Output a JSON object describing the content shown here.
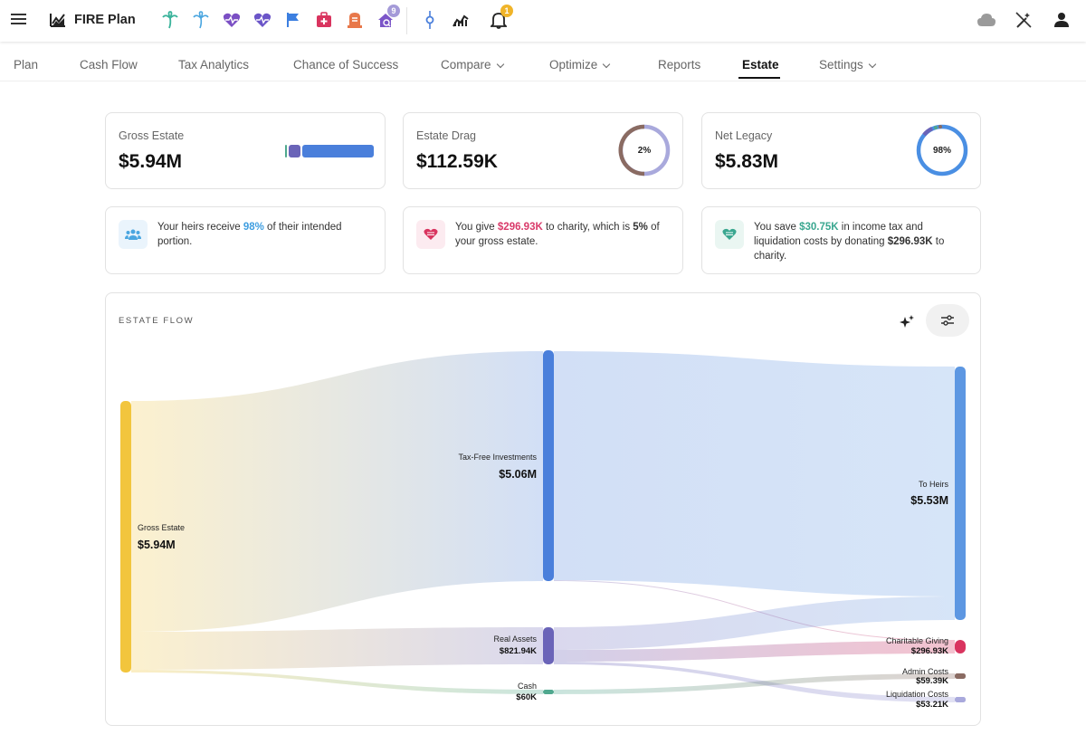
{
  "app": {
    "title": "FIRE Plan",
    "notification_count": "1",
    "profile_badge": "9"
  },
  "header_icons": [
    "palm-tree-icon",
    "palm-tree-outline-icon",
    "heart-pulse-icon",
    "heart-pulse-outline-icon",
    "flag-icon",
    "medical-kit-icon",
    "tombstone-icon",
    "house-search-icon",
    "slider-point-icon",
    "chart-trend-icon",
    "bell-icon",
    "cloud-icon",
    "magic-wand-off-icon",
    "user-icon"
  ],
  "tabs": [
    {
      "label": "Plan"
    },
    {
      "label": "Cash Flow"
    },
    {
      "label": "Tax Analytics"
    },
    {
      "label": "Chance of Success"
    },
    {
      "label": "Compare"
    },
    {
      "label": "Optimize"
    },
    {
      "label": "Reports"
    },
    {
      "label": "Estate"
    },
    {
      "label": "Settings"
    }
  ],
  "stats": [
    {
      "label": "Gross Estate",
      "value": "$5.94M"
    },
    {
      "label": "Estate Drag",
      "value": "$112.59K",
      "pct": "2%"
    },
    {
      "label": "Net Legacy",
      "value": "$5.83M",
      "pct": "98%"
    }
  ],
  "info": [
    {
      "pre": "Your heirs receive ",
      "hl": "98%",
      "post": " of their intended portion."
    },
    {
      "pre": "You give ",
      "hl": "$296.93K",
      "mid": " to charity, which is ",
      "hl2": "5%",
      "post": " of your gross estate."
    },
    {
      "pre": "You save ",
      "hl": "$30.75K",
      "mid": " in income tax and liquidation costs by donating ",
      "hl2": "$296.93K",
      "post": " to charity."
    }
  ],
  "flow": {
    "title": "ESTATE FLOW",
    "nodes": {
      "gross": {
        "label": "Gross Estate",
        "value": "$5.94M"
      },
      "taxfree": {
        "label": "Tax-Free Investments",
        "value": "$5.06M"
      },
      "real": {
        "label": "Real Assets",
        "value": "$821.94K"
      },
      "cash": {
        "label": "Cash",
        "value": "$60K"
      },
      "heirs": {
        "label": "To Heirs",
        "value": "$5.53M"
      },
      "charity": {
        "label": "Charitable Giving",
        "value": "$296.93K"
      },
      "admin": {
        "label": "Admin Costs",
        "value": "$59.39K"
      },
      "liquidation": {
        "label": "Liquidation Costs",
        "value": "$53.21K"
      }
    }
  },
  "colors": {
    "gross": "#f2c53d",
    "taxfree": "#4a7fdb",
    "real": "#6a64b8",
    "cash": "#4fa88e",
    "heirs": "#5d97e2",
    "charity": "#d9345f",
    "admin": "#8a6b62",
    "liquidation": "#a9a9dc",
    "highlight_blue": "#3f9ee0",
    "highlight_pink": "#d93a6a",
    "highlight_teal": "#3aa790"
  }
}
